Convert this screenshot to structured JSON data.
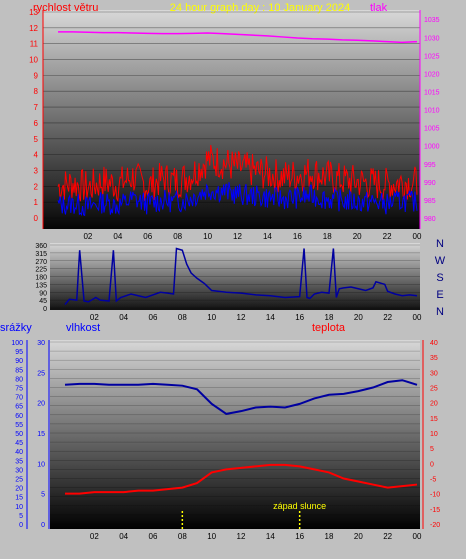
{
  "header": {
    "left_label": "rychlost větru",
    "title": "24 hour graph day : 10 January 2024",
    "right_label": "tlak"
  },
  "colors": {
    "background": "#c0c0c0",
    "wind": "#ff0000",
    "wind_avg": "#0000ff",
    "pressure": "#ff00ff",
    "direction": "#0000a0",
    "humidity": "#0000a0",
    "temperature": "#ff0000",
    "title": "#ffff00",
    "rain_axis": "#0000ff",
    "temp_axis": "#ff0000",
    "sunset": "#ffff00"
  },
  "x_ticks": [
    "02",
    "04",
    "06",
    "08",
    "10",
    "12",
    "14",
    "16",
    "18",
    "20",
    "22",
    "00"
  ],
  "chart_data": [
    {
      "id": "wind_pressure",
      "type": "line",
      "title": "24 hour graph day : 10 January 2024",
      "ylabel_left": "rychlost větru",
      "ylabel_right": "tlak",
      "ylim_left": [
        0,
        13
      ],
      "yticks_left": [
        "0",
        "1",
        "2",
        "3",
        "4",
        "5",
        "6",
        "7",
        "8",
        "9",
        "10",
        "11",
        "12",
        "13"
      ],
      "ylim_right": [
        980,
        1037
      ],
      "yticks_right": [
        "980",
        "985",
        "990",
        "995",
        "1000",
        "1005",
        "1010",
        "1015",
        "1020",
        "1025",
        "1030",
        "1035"
      ],
      "x": [
        0,
        1,
        2,
        3,
        4,
        5,
        6,
        7,
        8,
        9,
        10,
        11,
        12,
        13,
        14,
        15,
        16,
        17,
        18,
        19,
        20,
        21,
        22,
        23,
        24
      ],
      "series": [
        {
          "axis": "right",
          "style": "line",
          "values": [
            1031.5,
            1031.5,
            1031.4,
            1031.3,
            1031.3,
            1031.2,
            1031.1,
            1031.0,
            1031.0,
            1031.1,
            1031.2,
            1031.0,
            1030.8,
            1030.6,
            1030.4,
            1030.1,
            1029.8,
            1029.6,
            1029.5,
            1029.3,
            1029.2,
            1029.0,
            1028.8,
            1028.6,
            1028.8
          ]
        },
        {
          "axis": "left",
          "style": "gust",
          "values": [
            2.0,
            2.2,
            1.9,
            2.3,
            2.1,
            2.6,
            2.0,
            2.5,
            2.3,
            2.8,
            3.7,
            3.5,
            3.2,
            3.0,
            2.8,
            2.6,
            2.7,
            2.9,
            2.6,
            2.4,
            2.3,
            2.2,
            2.1,
            2.3,
            2.2
          ]
        },
        {
          "axis": "left",
          "style": "average",
          "values": [
            0.8,
            0.9,
            0.7,
            1.0,
            0.8,
            1.2,
            0.9,
            1.1,
            1.0,
            1.3,
            1.8,
            1.7,
            1.5,
            1.4,
            1.3,
            1.2,
            1.3,
            1.4,
            1.2,
            1.1,
            1.0,
            1.0,
            0.9,
            1.1,
            1.0
          ]
        }
      ]
    },
    {
      "id": "wind_direction",
      "type": "line",
      "ylim": [
        0,
        360
      ],
      "yticks": [
        "0",
        "45",
        "90",
        "135",
        "180",
        "225",
        "270",
        "315",
        "360"
      ],
      "compass_labels": [
        "N",
        "W",
        "S",
        "E",
        "N"
      ],
      "x": [
        0,
        0.3,
        0.8,
        1.0,
        1.3,
        1.6,
        2.1,
        2.4,
        3.0,
        3.3,
        3.5,
        3.8,
        4.5,
        5.0,
        5.5,
        6.5,
        7.0,
        7.4,
        7.6,
        8.0,
        8.3,
        8.6,
        9.0,
        9.5,
        10.0,
        11.0,
        12.0,
        13.0,
        14.0,
        15.0,
        16.0,
        16.3,
        16.5,
        16.7,
        17.0,
        17.5,
        18.0,
        18.3,
        18.5,
        18.7,
        19.0,
        19.5,
        20.0,
        20.5,
        21.0,
        21.2,
        21.8,
        22.0,
        22.5,
        23.0,
        23.5,
        24.0
      ],
      "values": [
        20,
        50,
        45,
        330,
        40,
        35,
        60,
        45,
        40,
        330,
        40,
        60,
        80,
        70,
        60,
        90,
        85,
        80,
        340,
        330,
        250,
        200,
        170,
        140,
        100,
        90,
        85,
        75,
        70,
        60,
        65,
        340,
        60,
        55,
        80,
        90,
        85,
        340,
        60,
        110,
        115,
        120,
        110,
        100,
        115,
        150,
        135,
        95,
        80,
        70,
        75,
        70
      ]
    },
    {
      "id": "humidity_temperature",
      "type": "line",
      "left_axis_labels": [
        "srážky",
        "vlhkost"
      ],
      "right_axis_label": "teplota",
      "ylim_rain": [
        0,
        100
      ],
      "yticks_rain": [
        "0",
        "5",
        "10",
        "15",
        "20",
        "25",
        "30",
        "35",
        "40",
        "45",
        "50",
        "55",
        "60",
        "65",
        "70",
        "75",
        "80",
        "85",
        "90",
        "95",
        "100"
      ],
      "ylim_humidity": [
        0,
        30
      ],
      "yticks_humidity": [
        "0",
        "5",
        "10",
        "15",
        "20",
        "25",
        "30"
      ],
      "ylim_temp": [
        -20,
        40
      ],
      "yticks_temp": [
        "-20",
        "-15",
        "-10",
        "-5",
        "0",
        "5",
        "10",
        "15",
        "20",
        "25",
        "30",
        "35",
        "40"
      ],
      "x": [
        0,
        1,
        2,
        3,
        4,
        5,
        6,
        7,
        8,
        9,
        10,
        11,
        12,
        13,
        14,
        15,
        16,
        17,
        18,
        19,
        20,
        21,
        22,
        23,
        24
      ],
      "series": [
        {
          "axis": "rain",
          "name": "vlhkost",
          "values": [
            76.5,
            77,
            77,
            76.5,
            76.5,
            76.5,
            77,
            76.5,
            76,
            74,
            66,
            60.5,
            62,
            64,
            64.5,
            64,
            66,
            69,
            71,
            71.5,
            73,
            75,
            78,
            79,
            76.5
          ]
        },
        {
          "axis": "temp",
          "name": "teplota",
          "values": [
            -10,
            -10,
            -9.5,
            -9.5,
            -9.5,
            -9,
            -9,
            -8.5,
            -8,
            -6.5,
            -3,
            -2,
            -1.5,
            -1,
            -0.5,
            -0.5,
            -1,
            -2,
            -3,
            -5,
            -6,
            -7,
            -8,
            -7.5,
            -7
          ]
        }
      ],
      "annotations": [
        {
          "text": "západ slunce",
          "x": 16.0
        }
      ],
      "markers_x": [
        8.0,
        16.0
      ]
    }
  ]
}
